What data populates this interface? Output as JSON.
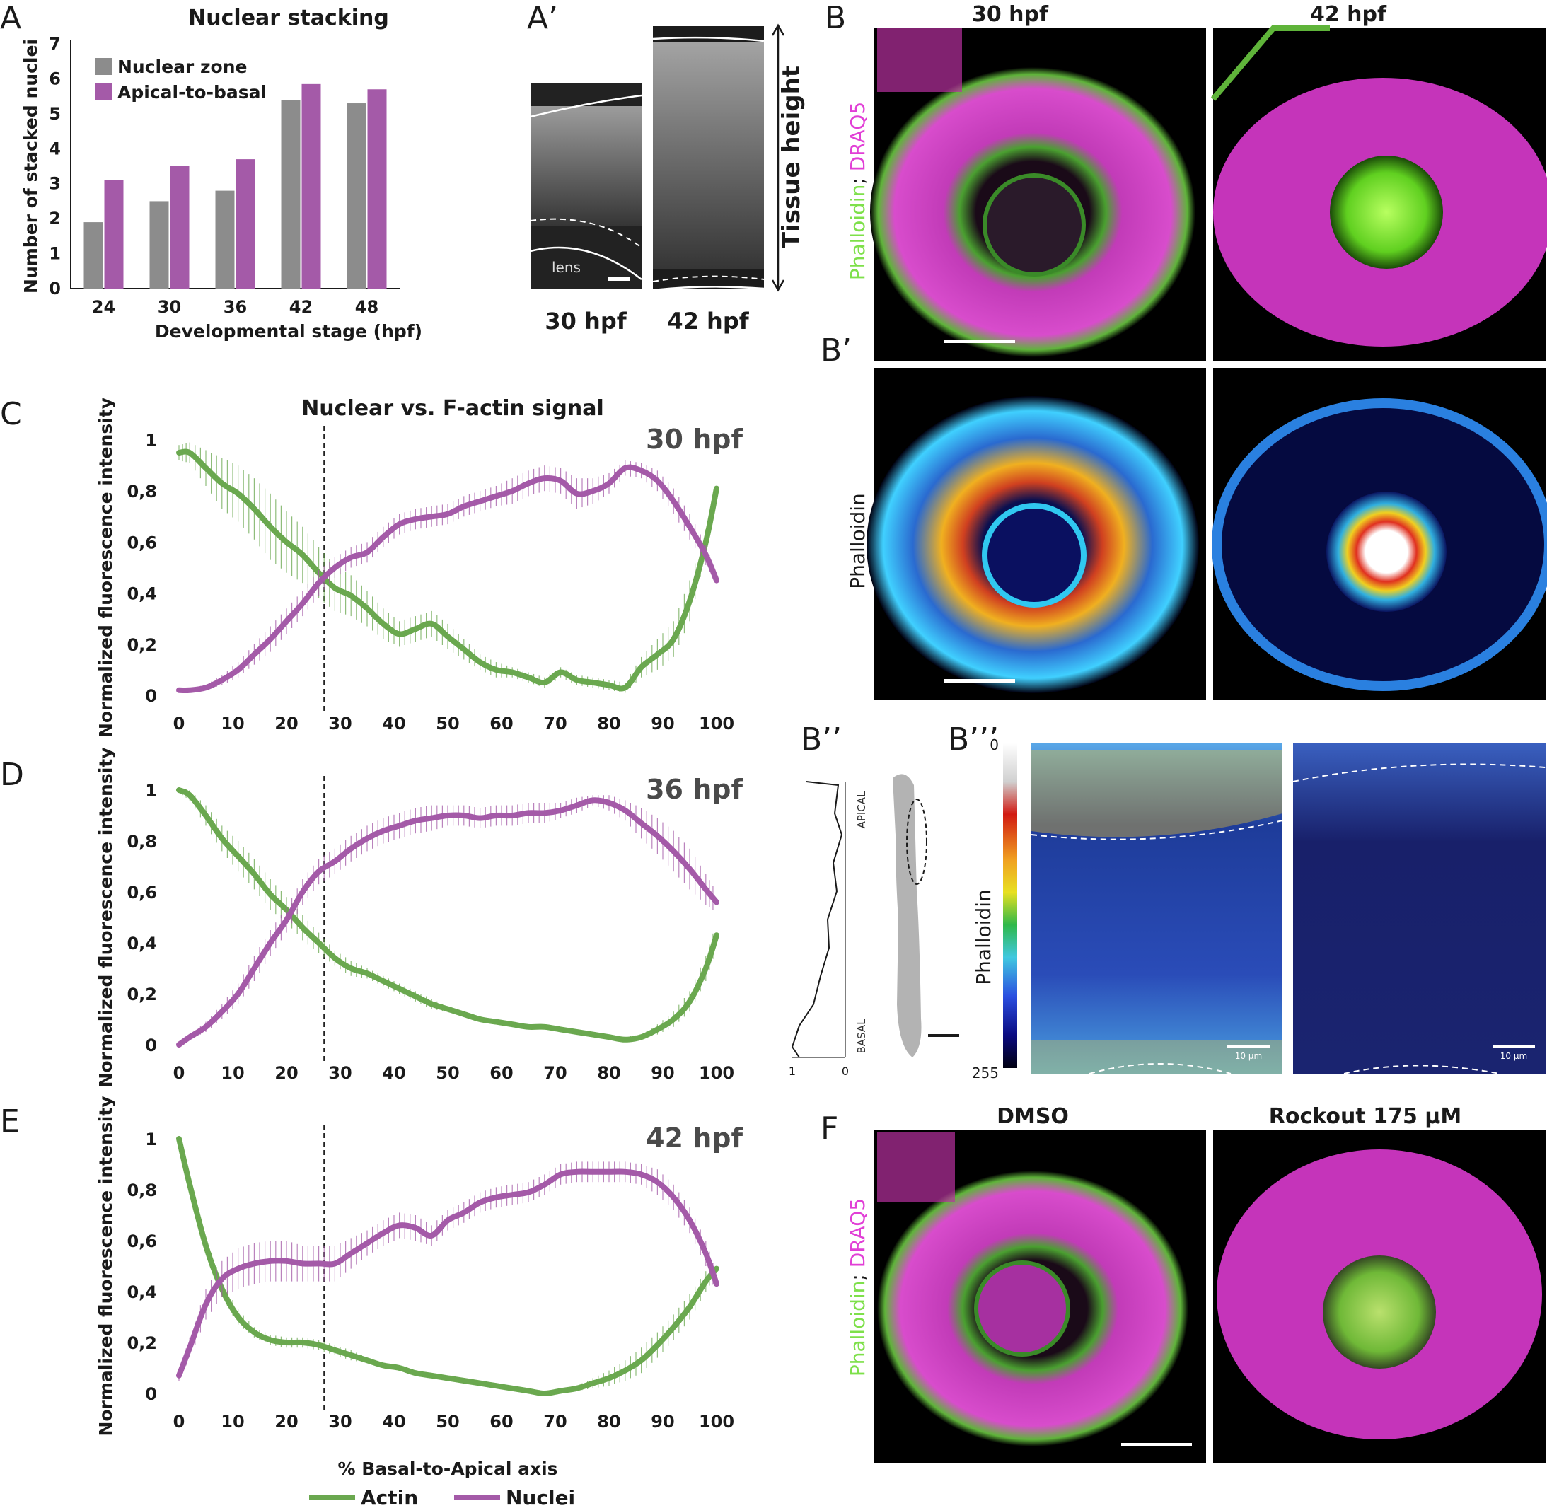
{
  "colors": {
    "actin": "#6aa84f",
    "nuclei": "#a45aa8",
    "gray_bar": "#8c8c8c",
    "purple_bar": "#a45aa8",
    "phalloidin_green": "#7ee04a",
    "draq5_magenta": "#e13fd6"
  },
  "panel_labels": {
    "A": "A",
    "A_prime": "A’",
    "B": "B",
    "B_prime": "B’",
    "B_dprime": "B’’",
    "B_tprime": "B’’’",
    "C": "C",
    "D": "D",
    "E": "E",
    "F": "F"
  },
  "panel_A_prime": {
    "lens_label": "lens",
    "label_30": "30 hpf",
    "label_42": "42 hpf",
    "tissue_height": "Tissue height"
  },
  "panel_B": {
    "col_30": "30 hpf",
    "col_42": "42 hpf",
    "stain_green": "Phalloidin",
    "stain_sep": "; ",
    "stain_magenta": "DRAQ5"
  },
  "panel_B_prime": {
    "stain": "Phalloidin"
  },
  "panel_B_dprime": {
    "apical": "APICAL",
    "basal": "BASAL",
    "axis_ticks": [
      "1",
      "0"
    ]
  },
  "panel_B_tprime": {
    "colorbar_top": "0",
    "colorbar_bottom": "255",
    "stain": "Phalloidin",
    "scale_text": "10 µm"
  },
  "panel_F": {
    "col_left": "DMSO",
    "col_right": "Rockout 175 µM",
    "stain_green": "Phalloidin",
    "stain_sep": "; ",
    "stain_magenta": "DRAQ5"
  },
  "legend": {
    "actin": "Actin",
    "nuclei": "Nuclei"
  },
  "chart_data": [
    {
      "panel": "A",
      "type": "bar",
      "title": "Nuclear stacking",
      "xlabel": "Developmental stage (hpf)",
      "ylabel": "Number of stacked nuclei",
      "categories": [
        "24",
        "30",
        "36",
        "42",
        "48"
      ],
      "ylim": [
        0,
        7
      ],
      "yticks": [
        "0",
        "1",
        "2",
        "3",
        "4",
        "5",
        "6",
        "7"
      ],
      "legend_position": "top-left",
      "series": [
        {
          "name": "Nuclear zone",
          "values": [
            1.9,
            2.5,
            2.8,
            5.4,
            5.3
          ]
        },
        {
          "name": "Apical-to-basal",
          "values": [
            3.1,
            3.5,
            3.7,
            5.85,
            5.7
          ]
        }
      ]
    },
    {
      "panel": "C",
      "type": "line",
      "title": "Nuclear vs. F-actin signal",
      "stage": "30 hpf",
      "xlabel": "",
      "ylabel": "Normalized fluorescence intensity",
      "xlim": [
        0,
        100
      ],
      "ylim": [
        0,
        1
      ],
      "xticks": [
        "0",
        "10",
        "20",
        "30",
        "40",
        "50",
        "60",
        "70",
        "80",
        "90",
        "100"
      ],
      "yticks": [
        "0",
        "0,2",
        "0,4",
        "0,6",
        "0,8",
        "1"
      ],
      "vline_x": 27,
      "x": [
        0,
        2,
        5,
        8,
        11,
        14,
        17,
        20,
        23,
        26,
        29,
        32,
        35,
        38,
        41,
        44,
        47,
        50,
        53,
        56,
        59,
        62,
        65,
        68,
        71,
        74,
        77,
        80,
        83,
        86,
        89,
        92,
        95,
        98,
        100
      ],
      "series": [
        {
          "name": "Actin",
          "values": [
            0.95,
            0.95,
            0.89,
            0.83,
            0.79,
            0.73,
            0.66,
            0.6,
            0.55,
            0.48,
            0.42,
            0.39,
            0.34,
            0.28,
            0.24,
            0.26,
            0.28,
            0.23,
            0.18,
            0.13,
            0.1,
            0.09,
            0.07,
            0.05,
            0.09,
            0.06,
            0.05,
            0.04,
            0.03,
            0.11,
            0.16,
            0.22,
            0.37,
            0.6,
            0.81
          ],
          "error": [
            0.03,
            0.04,
            0.07,
            0.1,
            0.11,
            0.12,
            0.13,
            0.12,
            0.11,
            0.1,
            0.09,
            0.08,
            0.07,
            0.06,
            0.05,
            0.05,
            0.05,
            0.05,
            0.04,
            0.03,
            0.03,
            0.02,
            0.02,
            0.02,
            0.02,
            0.02,
            0.02,
            0.02,
            0.02,
            0.04,
            0.06,
            0.07,
            0.08,
            0.05,
            0.02
          ]
        },
        {
          "name": "Nuclei",
          "values": [
            0.02,
            0.02,
            0.03,
            0.06,
            0.1,
            0.16,
            0.22,
            0.29,
            0.36,
            0.44,
            0.5,
            0.54,
            0.56,
            0.62,
            0.67,
            0.69,
            0.7,
            0.71,
            0.74,
            0.76,
            0.78,
            0.8,
            0.83,
            0.85,
            0.84,
            0.79,
            0.8,
            0.83,
            0.89,
            0.88,
            0.84,
            0.76,
            0.66,
            0.55,
            0.45
          ],
          "error": [
            0.01,
            0.01,
            0.01,
            0.02,
            0.03,
            0.04,
            0.05,
            0.05,
            0.05,
            0.05,
            0.04,
            0.04,
            0.04,
            0.04,
            0.04,
            0.04,
            0.04,
            0.04,
            0.04,
            0.04,
            0.04,
            0.05,
            0.05,
            0.05,
            0.05,
            0.06,
            0.05,
            0.04,
            0.03,
            0.03,
            0.04,
            0.05,
            0.05,
            0.04,
            0.02
          ]
        }
      ]
    },
    {
      "panel": "D",
      "type": "line",
      "stage": "36 hpf",
      "xlabel": "",
      "ylabel": "Normalized fluorescence intensity",
      "xlim": [
        0,
        100
      ],
      "ylim": [
        0,
        1
      ],
      "xticks": [
        "0",
        "10",
        "20",
        "30",
        "40",
        "50",
        "60",
        "70",
        "80",
        "90",
        "100"
      ],
      "yticks": [
        "0",
        "0,2",
        "0,4",
        "0,6",
        "0,8",
        "1"
      ],
      "vline_x": 27,
      "x": [
        0,
        2,
        5,
        8,
        11,
        14,
        17,
        20,
        23,
        26,
        29,
        32,
        35,
        38,
        41,
        44,
        47,
        50,
        53,
        56,
        59,
        62,
        65,
        68,
        71,
        74,
        77,
        80,
        83,
        86,
        89,
        92,
        95,
        98,
        100
      ],
      "series": [
        {
          "name": "Actin",
          "values": [
            1.0,
            0.98,
            0.9,
            0.81,
            0.74,
            0.67,
            0.59,
            0.53,
            0.46,
            0.4,
            0.34,
            0.3,
            0.28,
            0.25,
            0.22,
            0.19,
            0.16,
            0.14,
            0.12,
            0.1,
            0.09,
            0.08,
            0.07,
            0.07,
            0.06,
            0.05,
            0.04,
            0.03,
            0.02,
            0.03,
            0.06,
            0.1,
            0.17,
            0.3,
            0.43
          ],
          "error": [
            0.01,
            0.02,
            0.04,
            0.05,
            0.06,
            0.06,
            0.06,
            0.05,
            0.05,
            0.04,
            0.03,
            0.03,
            0.02,
            0.02,
            0.02,
            0.02,
            0.02,
            0.01,
            0.01,
            0.01,
            0.01,
            0.01,
            0.01,
            0.01,
            0.01,
            0.01,
            0.01,
            0.01,
            0.01,
            0.01,
            0.02,
            0.03,
            0.04,
            0.05,
            0.05
          ]
        },
        {
          "name": "Nuclei",
          "values": [
            0.0,
            0.03,
            0.07,
            0.13,
            0.2,
            0.3,
            0.4,
            0.49,
            0.6,
            0.68,
            0.72,
            0.77,
            0.81,
            0.84,
            0.86,
            0.88,
            0.89,
            0.9,
            0.9,
            0.89,
            0.9,
            0.9,
            0.91,
            0.91,
            0.92,
            0.94,
            0.96,
            0.95,
            0.92,
            0.87,
            0.82,
            0.76,
            0.69,
            0.61,
            0.56
          ],
          "error": [
            0.01,
            0.01,
            0.02,
            0.03,
            0.04,
            0.05,
            0.05,
            0.05,
            0.05,
            0.05,
            0.05,
            0.05,
            0.05,
            0.05,
            0.05,
            0.05,
            0.05,
            0.04,
            0.04,
            0.04,
            0.04,
            0.04,
            0.04,
            0.04,
            0.03,
            0.03,
            0.02,
            0.03,
            0.04,
            0.06,
            0.07,
            0.08,
            0.08,
            0.06,
            0.04
          ]
        }
      ]
    },
    {
      "panel": "E",
      "type": "line",
      "stage": "42 hpf",
      "xlabel": "% Basal-to-Apical axis",
      "ylabel": "Normalized fluorescence intensity",
      "xlim": [
        0,
        100
      ],
      "ylim": [
        0,
        1
      ],
      "xticks": [
        "0",
        "10",
        "20",
        "30",
        "40",
        "50",
        "60",
        "70",
        "80",
        "90",
        "100"
      ],
      "yticks": [
        "0",
        "0,2",
        "0,4",
        "0,6",
        "0,8",
        "1"
      ],
      "vline_x": 27,
      "x": [
        0,
        2,
        5,
        8,
        11,
        14,
        17,
        20,
        23,
        26,
        29,
        32,
        35,
        38,
        41,
        44,
        47,
        50,
        53,
        56,
        59,
        62,
        65,
        68,
        71,
        74,
        77,
        80,
        83,
        86,
        89,
        92,
        95,
        98,
        100
      ],
      "series": [
        {
          "name": "Actin",
          "values": [
            1.0,
            0.82,
            0.58,
            0.41,
            0.3,
            0.24,
            0.21,
            0.2,
            0.2,
            0.19,
            0.17,
            0.15,
            0.13,
            0.11,
            0.1,
            0.08,
            0.07,
            0.06,
            0.05,
            0.04,
            0.03,
            0.02,
            0.01,
            0.0,
            0.01,
            0.02,
            0.04,
            0.06,
            0.09,
            0.13,
            0.19,
            0.26,
            0.34,
            0.44,
            0.49
          ],
          "error": [
            0.01,
            0.02,
            0.03,
            0.03,
            0.03,
            0.02,
            0.02,
            0.02,
            0.02,
            0.02,
            0.02,
            0.02,
            0.01,
            0.01,
            0.01,
            0.01,
            0.01,
            0.01,
            0.01,
            0.01,
            0.01,
            0.01,
            0.01,
            0.01,
            0.01,
            0.01,
            0.02,
            0.03,
            0.04,
            0.05,
            0.05,
            0.05,
            0.05,
            0.04,
            0.02
          ]
        },
        {
          "name": "Nuclei",
          "values": [
            0.07,
            0.18,
            0.35,
            0.45,
            0.49,
            0.51,
            0.52,
            0.52,
            0.51,
            0.51,
            0.51,
            0.55,
            0.59,
            0.63,
            0.66,
            0.65,
            0.62,
            0.68,
            0.71,
            0.75,
            0.77,
            0.78,
            0.79,
            0.82,
            0.86,
            0.87,
            0.87,
            0.87,
            0.87,
            0.86,
            0.83,
            0.77,
            0.68,
            0.55,
            0.43
          ],
          "error": [
            0.02,
            0.04,
            0.06,
            0.07,
            0.08,
            0.08,
            0.08,
            0.08,
            0.07,
            0.07,
            0.07,
            0.06,
            0.05,
            0.05,
            0.05,
            0.05,
            0.04,
            0.04,
            0.04,
            0.04,
            0.04,
            0.04,
            0.04,
            0.04,
            0.04,
            0.04,
            0.04,
            0.04,
            0.04,
            0.04,
            0.05,
            0.05,
            0.05,
            0.05,
            0.04
          ]
        }
      ]
    }
  ]
}
